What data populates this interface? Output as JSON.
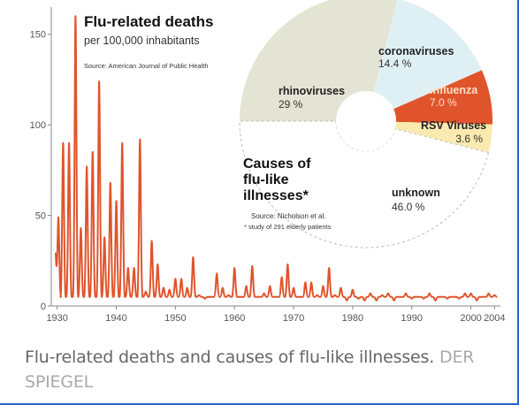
{
  "colors": {
    "line": "#e0542c",
    "axis": "#888888",
    "tick_text": "#555555",
    "grid": "#e6e6e6",
    "pie_rhino": "#e3e4d3",
    "pie_corona": "#dff0f5",
    "pie_influenza": "#e0542c",
    "pie_rsv": "#fbeab0",
    "pie_unknown": "#ffffff",
    "pie_dash": "#bdbdbd",
    "title": "#111111",
    "subtitle": "#333333",
    "caption": "#666666",
    "credit": "#a9a9a9"
  },
  "caption": {
    "text": "Flu-related deaths and causes of flu-like illnesses.",
    "credit": "DER SPIEGEL"
  },
  "chart_data": [
    {
      "type": "line",
      "title": "Flu-related deaths",
      "subtitle": "per 100,000 inhabitants",
      "source": "Source: American Journal of Public Health",
      "xlim": [
        1929,
        2005
      ],
      "ylim": [
        0,
        165
      ],
      "xticks": [
        1930,
        1940,
        1950,
        1960,
        1970,
        1980,
        1990,
        2000,
        2004
      ],
      "xtick_labels": [
        "1930",
        "1940",
        "1950",
        "1960",
        "1970",
        "1980",
        "1990",
        "2000",
        "2004"
      ],
      "yticks": [
        0,
        50,
        100,
        150
      ],
      "ytick_labels": [
        "0",
        "50",
        "100",
        "150"
      ],
      "grid": false,
      "series": [
        {
          "peaks": [
            [
              1930.2,
              49
            ],
            [
              1931.0,
              90
            ],
            [
              1932.0,
              90
            ],
            [
              1933.1,
              160
            ],
            [
              1934.0,
              43
            ],
            [
              1935.0,
              77
            ],
            [
              1936.0,
              85
            ],
            [
              1937.1,
              124
            ],
            [
              1938.0,
              38
            ],
            [
              1939.0,
              68
            ],
            [
              1940.0,
              58
            ],
            [
              1941.0,
              90
            ],
            [
              1942.0,
              21
            ],
            [
              1943.0,
              21
            ],
            [
              1944.0,
              92
            ],
            [
              1945.0,
              8
            ],
            [
              1946.0,
              36
            ],
            [
              1947.0,
              23
            ],
            [
              1948.0,
              10
            ],
            [
              1949.0,
              9
            ],
            [
              1950.0,
              15
            ],
            [
              1951.0,
              15
            ],
            [
              1952.0,
              10
            ],
            [
              1953.0,
              27
            ],
            [
              1954.0,
              6
            ],
            [
              1955.0,
              4
            ],
            [
              1956.0,
              5
            ],
            [
              1957.0,
              18
            ],
            [
              1958.0,
              10
            ],
            [
              1959.0,
              6
            ],
            [
              1960.0,
              21
            ],
            [
              1961.0,
              5
            ],
            [
              1962.0,
              11
            ],
            [
              1963.0,
              22
            ],
            [
              1964.0,
              5
            ],
            [
              1965.0,
              7
            ],
            [
              1966.0,
              11
            ],
            [
              1967.0,
              5
            ],
            [
              1968.0,
              16
            ],
            [
              1969.0,
              23
            ],
            [
              1970.0,
              10
            ],
            [
              1971.0,
              5
            ],
            [
              1972.0,
              13
            ],
            [
              1973.0,
              13
            ],
            [
              1974.0,
              6
            ],
            [
              1975.0,
              11
            ],
            [
              1976.0,
              21
            ],
            [
              1977.0,
              6
            ],
            [
              1978.0,
              10
            ],
            [
              1979.0,
              3
            ],
            [
              1980.0,
              9
            ],
            [
              1981.0,
              4
            ],
            [
              1982.0,
              3
            ],
            [
              1983.0,
              7
            ],
            [
              1984.0,
              3
            ],
            [
              1985.0,
              6
            ],
            [
              1986.0,
              7
            ],
            [
              1987.0,
              3
            ],
            [
              1988.0,
              5
            ],
            [
              1989.0,
              7
            ],
            [
              1990.0,
              4
            ],
            [
              1991.0,
              5
            ],
            [
              1992.0,
              4
            ],
            [
              1993.0,
              7
            ],
            [
              1994.0,
              3
            ],
            [
              1995.0,
              5
            ],
            [
              1996.0,
              4
            ],
            [
              1997.0,
              5
            ],
            [
              1998.0,
              4
            ],
            [
              1999.0,
              7
            ],
            [
              2000.0,
              7
            ],
            [
              2001.0,
              3
            ],
            [
              2002.0,
              5
            ],
            [
              2003.0,
              7
            ],
            [
              2004.0,
              6
            ]
          ]
        }
      ]
    },
    {
      "type": "pie",
      "title": "Causes of flu-like illnesses*",
      "title_lines": [
        "Causes of",
        "flu-like",
        "illnesses*"
      ],
      "source": "Source: Nicholson et al.",
      "note": "* study of 291 elderly patients",
      "slices": [
        {
          "label": "rhinoviruses",
          "value": 29,
          "value_label": "29 %",
          "color": "#e3e4d3"
        },
        {
          "label": "coronaviruses",
          "value": 14.4,
          "value_label": "14.4 %",
          "color": "#dff0f5"
        },
        {
          "label": "influenza",
          "value": 7.0,
          "value_label": "7.0 %",
          "color": "#e0542c"
        },
        {
          "label": "RSV Viruses",
          "value": 3.6,
          "value_label": "3.6 %",
          "color": "#fbeab0"
        },
        {
          "label": "unknown",
          "value": 46.0,
          "value_label": "46.0 %",
          "color": "#ffffff"
        }
      ]
    }
  ]
}
